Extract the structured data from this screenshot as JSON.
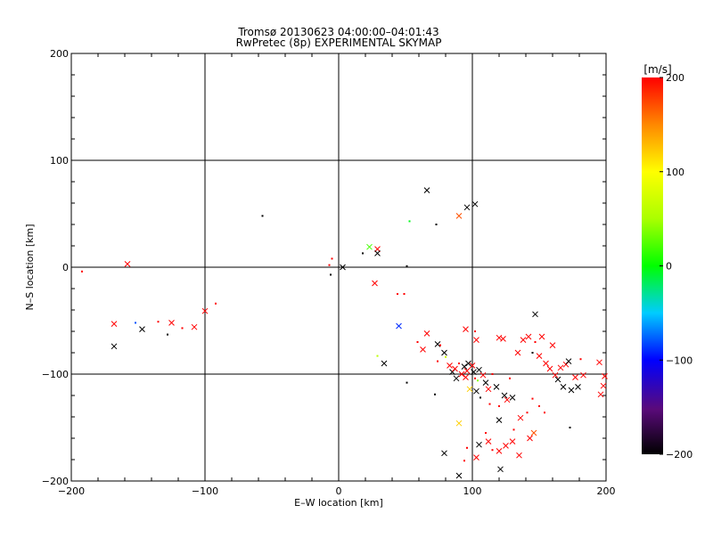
{
  "chart_data": {
    "type": "scatter",
    "title": "Tromsø 20130623 04:00:00–04:01:43",
    "subtitle": "RwPretec (8p) EXPERIMENTAL SKYMAP",
    "xlabel": "E–W location [km]",
    "ylabel": "N–S location [km]",
    "xlim": [
      -200,
      200
    ],
    "ylim": [
      -200,
      200
    ],
    "xticks": [
      -200,
      -100,
      0,
      100,
      200
    ],
    "yticks": [
      -200,
      -100,
      0,
      100,
      200
    ],
    "xtick_labels": [
      "−200",
      "−100",
      "0",
      "100",
      "200"
    ],
    "ytick_labels": [
      "−200",
      "−100",
      "0",
      "100",
      "200"
    ],
    "grid": true,
    "colorbar": {
      "label": "[m/s]",
      "range": [
        -200,
        200
      ],
      "ticks": [
        200,
        100,
        0,
        -100,
        -200
      ],
      "tick_labels": [
        "200",
        "100",
        "0",
        "−100",
        "−200"
      ]
    },
    "points": [
      {
        "x": -192,
        "y": -4,
        "v": 200,
        "m": "dot"
      },
      {
        "x": -158,
        "y": 3,
        "v": 200,
        "m": "cross"
      },
      {
        "x": -168,
        "y": -53,
        "v": 200,
        "m": "cross"
      },
      {
        "x": -168,
        "y": -74,
        "v": -200,
        "m": "cross"
      },
      {
        "x": -152,
        "y": -52,
        "v": -80,
        "m": "dot"
      },
      {
        "x": -147,
        "y": -58,
        "v": -200,
        "m": "cross"
      },
      {
        "x": -135,
        "y": -51,
        "v": 200,
        "m": "dot"
      },
      {
        "x": -128,
        "y": -63,
        "v": -200,
        "m": "dot"
      },
      {
        "x": -125,
        "y": -52,
        "v": 200,
        "m": "cross"
      },
      {
        "x": -117,
        "y": -57,
        "v": 200,
        "m": "dot"
      },
      {
        "x": -108,
        "y": -56,
        "v": 200,
        "m": "cross"
      },
      {
        "x": -100,
        "y": -41,
        "v": 200,
        "m": "cross"
      },
      {
        "x": -92,
        "y": -34,
        "v": 200,
        "m": "dot"
      },
      {
        "x": -57,
        "y": 48,
        "v": -200,
        "m": "dot"
      },
      {
        "x": -5,
        "y": 8,
        "v": 200,
        "m": "dot"
      },
      {
        "x": -7,
        "y": 2,
        "v": 200,
        "m": "dot"
      },
      {
        "x": -6,
        "y": -7,
        "v": -200,
        "m": "dot"
      },
      {
        "x": 3,
        "y": 0,
        "v": -200,
        "m": "cross"
      },
      {
        "x": 18,
        "y": 13,
        "v": -200,
        "m": "dot"
      },
      {
        "x": 23,
        "y": 19,
        "v": 20,
        "m": "cross"
      },
      {
        "x": 29,
        "y": 17,
        "v": 200,
        "m": "cross"
      },
      {
        "x": 29,
        "y": 13,
        "v": -200,
        "m": "cross"
      },
      {
        "x": 27,
        "y": -15,
        "v": 200,
        "m": "cross"
      },
      {
        "x": 44,
        "y": -25,
        "v": 200,
        "m": "dot"
      },
      {
        "x": 49,
        "y": -25,
        "v": 200,
        "m": "dot"
      },
      {
        "x": 51,
        "y": 1,
        "v": -200,
        "m": "dot"
      },
      {
        "x": 53,
        "y": 43,
        "v": -5,
        "m": "dot"
      },
      {
        "x": 66,
        "y": 72,
        "v": -200,
        "m": "cross"
      },
      {
        "x": 73,
        "y": 40,
        "v": -200,
        "m": "dot"
      },
      {
        "x": 90,
        "y": 48,
        "v": 170,
        "m": "cross"
      },
      {
        "x": 96,
        "y": 56,
        "v": -200,
        "m": "cross"
      },
      {
        "x": 102,
        "y": 59,
        "v": -200,
        "m": "cross"
      },
      {
        "x": 45,
        "y": -55,
        "v": -90,
        "m": "cross"
      },
      {
        "x": 29,
        "y": -83,
        "v": 60,
        "m": "dot"
      },
      {
        "x": 34,
        "y": -90,
        "v": -200,
        "m": "cross"
      },
      {
        "x": 51,
        "y": -108,
        "v": -200,
        "m": "dot"
      },
      {
        "x": 147,
        "y": -44,
        "v": -200,
        "m": "cross"
      },
      {
        "x": 72,
        "y": -119,
        "v": -200,
        "m": "dot"
      },
      {
        "x": 90,
        "y": -146,
        "v": 120,
        "m": "cross"
      },
      {
        "x": 79,
        "y": -174,
        "v": -200,
        "m": "cross"
      },
      {
        "x": 90,
        "y": -195,
        "v": -200,
        "m": "cross"
      },
      {
        "x": 105,
        "y": -166,
        "v": -200,
        "m": "cross"
      },
      {
        "x": 121,
        "y": -189,
        "v": -200,
        "m": "cross"
      },
      {
        "x": 120,
        "y": -143,
        "v": -200,
        "m": "cross"
      },
      {
        "x": 146,
        "y": -155,
        "v": 170,
        "m": "cross"
      },
      {
        "x": 173,
        "y": -150,
        "v": -200,
        "m": "dot"
      },
      {
        "x": 66,
        "y": -62,
        "v": 200,
        "m": "cross"
      },
      {
        "x": 59,
        "y": -70,
        "v": 200,
        "m": "dot"
      },
      {
        "x": 63,
        "y": -77,
        "v": 200,
        "m": "cross"
      },
      {
        "x": 74,
        "y": -72,
        "v": -200,
        "m": "cross"
      },
      {
        "x": 76,
        "y": -73,
        "v": 200,
        "m": "dot"
      },
      {
        "x": 79,
        "y": -80,
        "v": -200,
        "m": "cross"
      },
      {
        "x": 95,
        "y": -58,
        "v": 200,
        "m": "cross"
      },
      {
        "x": 102,
        "y": -60,
        "v": 200,
        "m": "dot"
      },
      {
        "x": 103,
        "y": -68,
        "v": 200,
        "m": "cross"
      },
      {
        "x": 74,
        "y": -88,
        "v": 200,
        "m": "dot"
      },
      {
        "x": 80,
        "y": -84,
        "v": 70,
        "m": "dot"
      },
      {
        "x": 83,
        "y": -92,
        "v": 200,
        "m": "cross"
      },
      {
        "x": 85,
        "y": -98,
        "v": -200,
        "m": "cross"
      },
      {
        "x": 87,
        "y": -95,
        "v": 200,
        "m": "cross"
      },
      {
        "x": 88,
        "y": -104,
        "v": -200,
        "m": "cross"
      },
      {
        "x": 90,
        "y": -90,
        "v": 200,
        "m": "dot"
      },
      {
        "x": 92,
        "y": -100,
        "v": 200,
        "m": "cross"
      },
      {
        "x": 94,
        "y": -93,
        "v": -200,
        "m": "cross"
      },
      {
        "x": 95,
        "y": -103,
        "v": 200,
        "m": "cross"
      },
      {
        "x": 96,
        "y": -97,
        "v": 200,
        "m": "cross"
      },
      {
        "x": 97,
        "y": -90,
        "v": -200,
        "m": "cross"
      },
      {
        "x": 98,
        "y": -114,
        "v": 120,
        "m": "cross"
      },
      {
        "x": 100,
        "y": -92,
        "v": 200,
        "m": "cross"
      },
      {
        "x": 101,
        "y": -98,
        "v": -200,
        "m": "cross"
      },
      {
        "x": 102,
        "y": -104,
        "v": 200,
        "m": "dot"
      },
      {
        "x": 103,
        "y": -116,
        "v": -200,
        "m": "cross"
      },
      {
        "x": 104,
        "y": -106,
        "v": 40,
        "m": "dot"
      },
      {
        "x": 105,
        "y": -96,
        "v": -200,
        "m": "cross"
      },
      {
        "x": 106,
        "y": -122,
        "v": -200,
        "m": "dot"
      },
      {
        "x": 108,
        "y": -101,
        "v": 200,
        "m": "cross"
      },
      {
        "x": 110,
        "y": -108,
        "v": -200,
        "m": "cross"
      },
      {
        "x": 112,
        "y": -114,
        "v": 200,
        "m": "cross"
      },
      {
        "x": 115,
        "y": -100,
        "v": 200,
        "m": "dot"
      },
      {
        "x": 118,
        "y": -112,
        "v": -200,
        "m": "cross"
      },
      {
        "x": 120,
        "y": -66,
        "v": 200,
        "m": "cross"
      },
      {
        "x": 123,
        "y": -67,
        "v": 200,
        "m": "cross"
      },
      {
        "x": 124,
        "y": -120,
        "v": -200,
        "m": "cross"
      },
      {
        "x": 126,
        "y": -124,
        "v": 200,
        "m": "cross"
      },
      {
        "x": 128,
        "y": -104,
        "v": 200,
        "m": "dot"
      },
      {
        "x": 130,
        "y": -122,
        "v": -200,
        "m": "cross"
      },
      {
        "x": 134,
        "y": -80,
        "v": 200,
        "m": "cross"
      },
      {
        "x": 138,
        "y": -68,
        "v": 200,
        "m": "cross"
      },
      {
        "x": 142,
        "y": -65,
        "v": 200,
        "m": "cross"
      },
      {
        "x": 145,
        "y": -80,
        "v": -200,
        "m": "dot"
      },
      {
        "x": 147,
        "y": -70,
        "v": 200,
        "m": "dot"
      },
      {
        "x": 150,
        "y": -83,
        "v": 200,
        "m": "cross"
      },
      {
        "x": 152,
        "y": -65,
        "v": 200,
        "m": "cross"
      },
      {
        "x": 155,
        "y": -90,
        "v": 200,
        "m": "cross"
      },
      {
        "x": 158,
        "y": -95,
        "v": 200,
        "m": "cross"
      },
      {
        "x": 160,
        "y": -73,
        "v": 200,
        "m": "cross"
      },
      {
        "x": 162,
        "y": -101,
        "v": 200,
        "m": "cross"
      },
      {
        "x": 164,
        "y": -105,
        "v": -200,
        "m": "cross"
      },
      {
        "x": 166,
        "y": -94,
        "v": 200,
        "m": "cross"
      },
      {
        "x": 168,
        "y": -112,
        "v": -200,
        "m": "cross"
      },
      {
        "x": 170,
        "y": -91,
        "v": 200,
        "m": "cross"
      },
      {
        "x": 172,
        "y": -88,
        "v": -200,
        "m": "cross"
      },
      {
        "x": 174,
        "y": -115,
        "v": -200,
        "m": "cross"
      },
      {
        "x": 177,
        "y": -103,
        "v": 200,
        "m": "cross"
      },
      {
        "x": 179,
        "y": -112,
        "v": -200,
        "m": "cross"
      },
      {
        "x": 181,
        "y": -86,
        "v": 200,
        "m": "dot"
      },
      {
        "x": 183,
        "y": -101,
        "v": 200,
        "m": "cross"
      },
      {
        "x": 195,
        "y": -89,
        "v": 200,
        "m": "cross"
      },
      {
        "x": 196,
        "y": -119,
        "v": 200,
        "m": "cross"
      },
      {
        "x": 198,
        "y": -111,
        "v": 200,
        "m": "cross"
      },
      {
        "x": 199,
        "y": -102,
        "v": 200,
        "m": "cross"
      },
      {
        "x": 113,
        "y": -128,
        "v": 200,
        "m": "dot"
      },
      {
        "x": 120,
        "y": -130,
        "v": 200,
        "m": "dot"
      },
      {
        "x": 131,
        "y": -152,
        "v": 200,
        "m": "dot"
      },
      {
        "x": 136,
        "y": -141,
        "v": 200,
        "m": "cross"
      },
      {
        "x": 141,
        "y": -136,
        "v": 200,
        "m": "dot"
      },
      {
        "x": 145,
        "y": -123,
        "v": 200,
        "m": "dot"
      },
      {
        "x": 150,
        "y": -130,
        "v": 200,
        "m": "dot"
      },
      {
        "x": 154,
        "y": -136,
        "v": 200,
        "m": "dot"
      },
      {
        "x": 110,
        "y": -155,
        "v": 200,
        "m": "dot"
      },
      {
        "x": 112,
        "y": -163,
        "v": 200,
        "m": "cross"
      },
      {
        "x": 115,
        "y": -171,
        "v": 200,
        "m": "dot"
      },
      {
        "x": 120,
        "y": -172,
        "v": 200,
        "m": "cross"
      },
      {
        "x": 125,
        "y": -167,
        "v": 200,
        "m": "cross"
      },
      {
        "x": 130,
        "y": -163,
        "v": 200,
        "m": "cross"
      },
      {
        "x": 135,
        "y": -176,
        "v": 200,
        "m": "cross"
      },
      {
        "x": 143,
        "y": -160,
        "v": 200,
        "m": "cross"
      },
      {
        "x": 103,
        "y": -178,
        "v": 200,
        "m": "cross"
      },
      {
        "x": 96,
        "y": -169,
        "v": 200,
        "m": "dot"
      },
      {
        "x": 94,
        "y": -181,
        "v": 200,
        "m": "dot"
      }
    ]
  }
}
